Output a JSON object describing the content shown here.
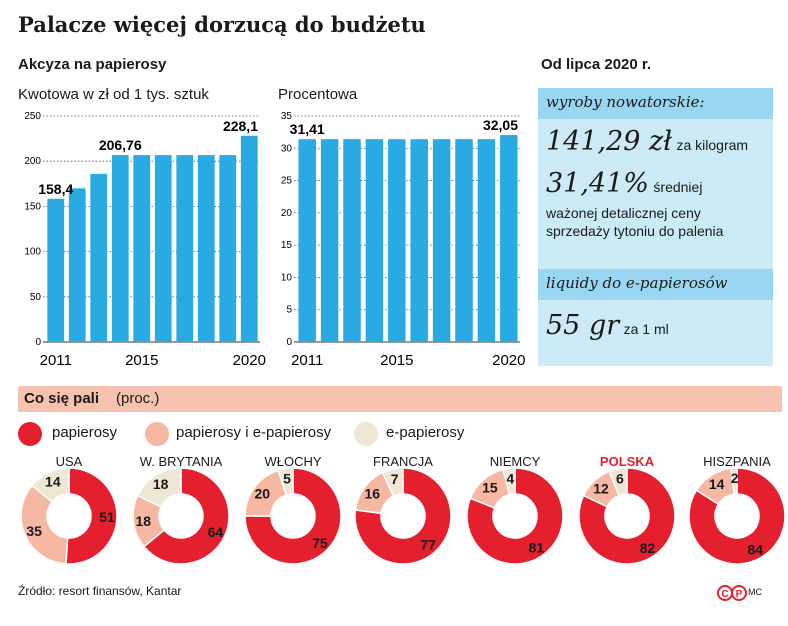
{
  "title": "Palacze więcej dorzucą do budżetu",
  "excise": {
    "heading": "Akcyza na papierosy",
    "left_subtitle": "Kwotowa w zł od 1 tys. sztuk",
    "right_subtitle": "Procentowa"
  },
  "chart_data": [
    {
      "type": "bar",
      "subtitle": "Kwotowa w zł od 1 tys. sztuk",
      "x": [
        2011,
        2012,
        2013,
        2014,
        2015,
        2016,
        2017,
        2018,
        2019,
        2020
      ],
      "values": [
        158.4,
        170,
        186,
        206.76,
        206.76,
        206.76,
        206.76,
        206.76,
        206.76,
        228.1
      ],
      "ylim": [
        0,
        250
      ],
      "yticks": [
        0,
        50,
        100,
        150,
        200,
        250
      ],
      "xticks": [
        "2011",
        "2015",
        "2020"
      ],
      "data_labels": {
        "0": "158,4",
        "3": "206,76",
        "9": "228,1"
      },
      "color": "#29aae2"
    },
    {
      "type": "bar",
      "subtitle": "Procentowa",
      "x": [
        2011,
        2012,
        2013,
        2014,
        2015,
        2016,
        2017,
        2018,
        2019,
        2020
      ],
      "values": [
        31.41,
        31.41,
        31.41,
        31.41,
        31.41,
        31.41,
        31.41,
        31.41,
        31.41,
        32.05
      ],
      "ylim": [
        0,
        35
      ],
      "yticks": [
        0,
        5,
        10,
        15,
        20,
        25,
        30,
        35
      ],
      "xticks": [
        "2011",
        "2015",
        "2020"
      ],
      "data_labels": {
        "0": "31,41",
        "9": "32,05"
      },
      "color": "#29aae2"
    },
    {
      "type": "pie",
      "title": "Co się pali",
      "unit": "(proc.)",
      "series_names": [
        "papierosy",
        "papierosy i e-papierosy",
        "e-papierosy"
      ],
      "colors": [
        "#e4202f",
        "#f6b8a2",
        "#ede7d3"
      ],
      "countries": [
        {
          "name": "USA",
          "values": [
            51,
            35,
            14
          ]
        },
        {
          "name": "W. BRYTANIA",
          "values": [
            64,
            18,
            18
          ]
        },
        {
          "name": "WŁOCHY",
          "values": [
            75,
            20,
            5
          ]
        },
        {
          "name": "FRANCJA",
          "values": [
            77,
            16,
            7
          ]
        },
        {
          "name": "NIEMCY",
          "values": [
            81,
            15,
            4
          ]
        },
        {
          "name": "POLSKA",
          "values": [
            82,
            12,
            6
          ],
          "highlight": true
        },
        {
          "name": "HISZPANIA",
          "values": [
            84,
            14,
            2
          ]
        }
      ]
    }
  ],
  "novel": {
    "heading": "Od lipca 2020 r.",
    "products_label": "wyroby nowatorskie:",
    "amount": "141,29 zł",
    "amount_unit": "za kilogram",
    "percent": "31,41%",
    "percent_text_1": "średniej",
    "percent_text_2": "ważonej detalicznej ceny",
    "percent_text_3": "sprzedaży tytoniu do palenia",
    "liquids_label": "liquidy do e-papierosów",
    "liquid_amount": "55 gr",
    "liquid_unit": "za 1 ml"
  },
  "smoking": {
    "title": "Co się pali",
    "unit": "(proc.)"
  },
  "source": "Źródło: resort finansów, Kantar",
  "logo_text": "ⒸⓅ",
  "credit": "MC",
  "colors": {
    "bar": "#29aae2",
    "red": "#e4202f",
    "salmon": "#f6b8a2",
    "beige": "#ede7d3",
    "highlight": "#e4202f"
  }
}
